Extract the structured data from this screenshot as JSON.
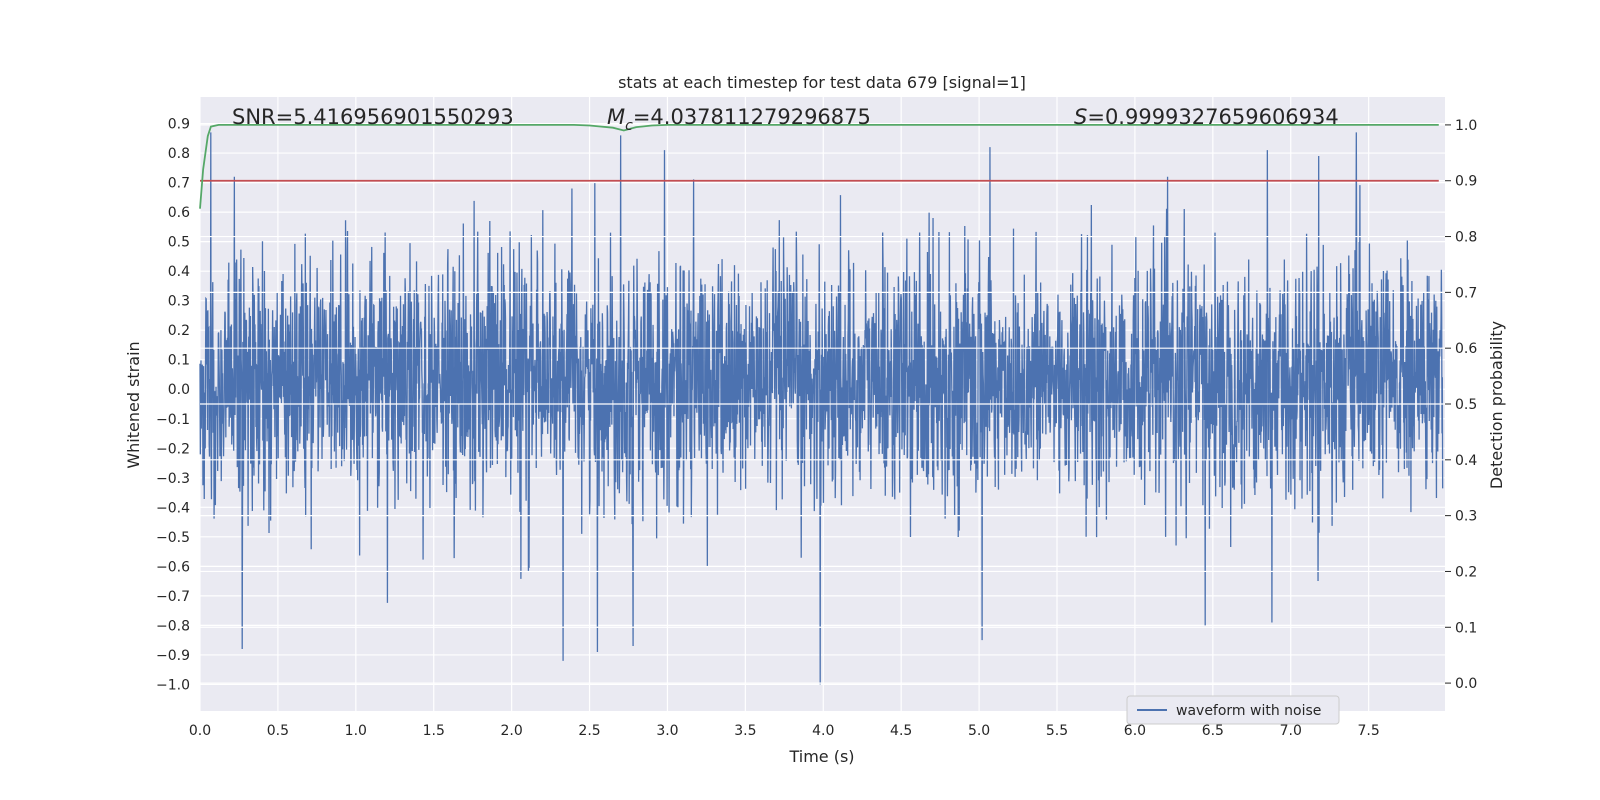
{
  "chart_data": {
    "type": "line",
    "title": "stats at each timestep for test data 679 [signal=1]",
    "xlabel": "Time (s)",
    "ylabel": "Whitened strain",
    "ylabel_right": "Detection probability",
    "xlim": [
      0.0,
      7.99
    ],
    "ylim": [
      -1.09,
      0.99
    ],
    "ylim_right": [
      -0.05,
      1.05
    ],
    "x_ticks": [
      "0.0",
      "0.5",
      "1.0",
      "1.5",
      "2.0",
      "2.5",
      "3.0",
      "3.5",
      "4.0",
      "4.5",
      "5.0",
      "5.5",
      "6.0",
      "6.5",
      "7.0",
      "7.5"
    ],
    "y_ticks": [
      "0.9",
      "0.8",
      "0.7",
      "0.6",
      "0.5",
      "0.4",
      "0.3",
      "0.2",
      "0.1",
      "0.0",
      "−0.1",
      "−0.2",
      "−0.3",
      "−0.4",
      "−0.5",
      "−0.6",
      "−0.7",
      "−0.8",
      "−0.9",
      "−1.0"
    ],
    "y_ticks_right": [
      "1.0",
      "0.9",
      "0.8",
      "0.7",
      "0.6",
      "0.5",
      "0.4",
      "0.3",
      "0.2",
      "0.1",
      "0.0"
    ],
    "grid": true,
    "legend": {
      "position": "lower-right",
      "entries": [
        "waveform with noise"
      ]
    },
    "annotations": {
      "snr": "SNR=5.416956901550293",
      "mc_prefix": "M",
      "mc_sub": "c",
      "mc_value": "=4.037811279296875",
      "s_prefix": "S",
      "s_value": "=0.9999327659606934"
    },
    "series": [
      {
        "name": "waveform with noise",
        "axis": "left",
        "color": "#4c72b0",
        "kind": "noise",
        "approx_range": [
          -1.0,
          0.9
        ],
        "core_band": [
          -0.25,
          0.3
        ],
        "notable_peaks": [
          {
            "x": 0.07,
            "y": 0.87
          },
          {
            "x": 0.22,
            "y": 0.72
          },
          {
            "x": 2.7,
            "y": 0.86
          },
          {
            "x": 2.98,
            "y": 0.81
          },
          {
            "x": 5.07,
            "y": 0.82
          },
          {
            "x": 7.42,
            "y": 0.87
          },
          {
            "x": 6.85,
            "y": 0.81
          },
          {
            "x": 7.18,
            "y": 0.79
          }
        ],
        "notable_troughs": [
          {
            "x": 0.27,
            "y": -0.88
          },
          {
            "x": 2.33,
            "y": -0.92
          },
          {
            "x": 2.55,
            "y": -0.89
          },
          {
            "x": 3.98,
            "y": -1.0
          },
          {
            "x": 5.02,
            "y": -0.85
          },
          {
            "x": 2.78,
            "y": -0.87
          },
          {
            "x": 6.45,
            "y": -0.8
          },
          {
            "x": 6.88,
            "y": -0.79
          }
        ]
      },
      {
        "name": "",
        "axis": "right",
        "color": "#55a868",
        "x": [
          0.0,
          0.02,
          0.05,
          0.07,
          0.12,
          2.4,
          2.5,
          2.65,
          2.72,
          2.8,
          2.9,
          3.0,
          7.95
        ],
        "values": [
          0.85,
          0.92,
          0.98,
          0.997,
          1.0,
          1.0,
          0.999,
          0.995,
          0.99,
          0.996,
          0.999,
          1.0,
          1.0
        ]
      },
      {
        "name": "",
        "axis": "right",
        "color": "#c44e52",
        "x": [
          0.0,
          7.95
        ],
        "values": [
          0.9,
          0.9
        ]
      }
    ]
  }
}
